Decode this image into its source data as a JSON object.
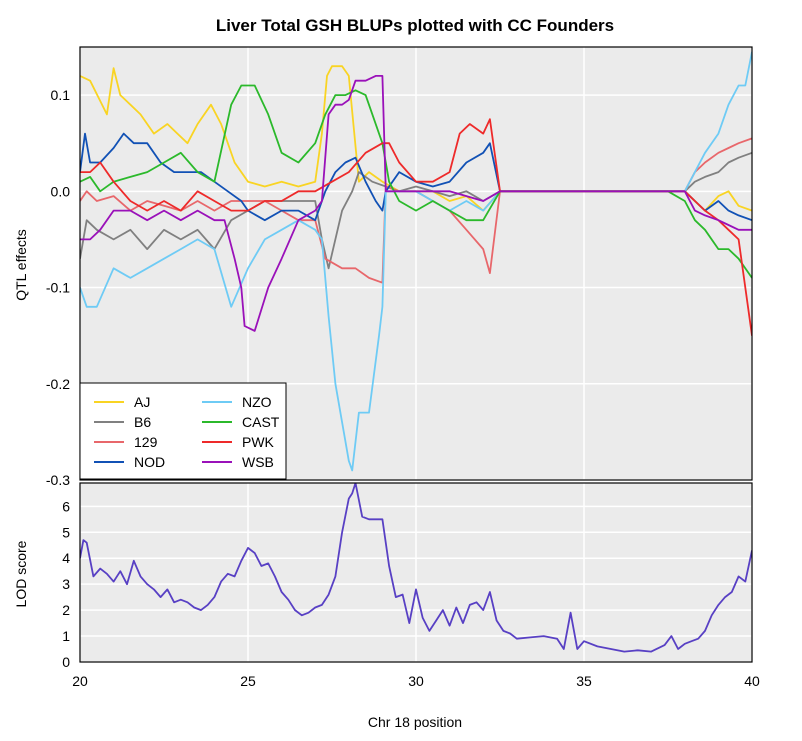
{
  "chart_data": [
    {
      "type": "line",
      "title": "Liver Total GSH BLUPs plotted with CC Founders",
      "ylabel": "QTL effects",
      "xlabel": "",
      "xlim": [
        20,
        40
      ],
      "ylim": [
        -0.3,
        0.15
      ],
      "x_ticks": [
        20,
        25,
        30,
        35,
        40
      ],
      "y_ticks": [
        -0.3,
        -0.2,
        -0.1,
        0.0,
        0.1
      ],
      "y_tick_labels": [
        "-0.3",
        "-0.2",
        "-0.1",
        "0.0",
        "0.1"
      ],
      "grid": true,
      "legend_position": "bottom-left",
      "series": [
        {
          "name": "AJ",
          "color": "#F9D423",
          "x": [
            20,
            20.3,
            20.8,
            21,
            21.2,
            21.5,
            21.8,
            22.2,
            22.6,
            22.9,
            23.2,
            23.5,
            23.9,
            24.2,
            24.6,
            25,
            25.5,
            26,
            26.5,
            27,
            27.2,
            27.35,
            27.5,
            27.8,
            28.0,
            28.3,
            28.6,
            29.0,
            29.5,
            30,
            30.5,
            31,
            31.5,
            32,
            32.5,
            38,
            38.3,
            38.6,
            39,
            39.3,
            39.6,
            40
          ],
          "y": [
            0.12,
            0.115,
            0.08,
            0.128,
            0.1,
            0.09,
            0.08,
            0.06,
            0.07,
            0.06,
            0.05,
            0.07,
            0.09,
            0.07,
            0.03,
            0.01,
            0.005,
            0.01,
            0.005,
            0.01,
            0.06,
            0.12,
            0.13,
            0.13,
            0.12,
            0.01,
            0.02,
            0.01,
            0.0,
            0.0,
            0.0,
            -0.01,
            -0.005,
            -0.02,
            0.0,
            0.0,
            -0.01,
            -0.02,
            -0.005,
            0.0,
            -0.015,
            -0.02
          ]
        },
        {
          "name": "B6",
          "color": "#808080",
          "x": [
            20,
            20.2,
            20.5,
            21,
            21.5,
            22,
            22.5,
            23,
            23.5,
            24,
            24.5,
            25,
            25.5,
            26,
            26.5,
            27,
            27.2,
            27.4,
            27.8,
            28.1,
            28.3,
            28.7,
            29.1,
            29.5,
            30,
            30.5,
            31,
            31.5,
            32,
            32.5,
            38,
            38.3,
            38.6,
            39,
            39.3,
            39.6,
            40
          ],
          "y": [
            -0.07,
            -0.03,
            -0.04,
            -0.05,
            -0.04,
            -0.06,
            -0.04,
            -0.05,
            -0.04,
            -0.06,
            -0.03,
            -0.02,
            -0.01,
            -0.01,
            -0.01,
            -0.01,
            -0.05,
            -0.08,
            -0.02,
            0.0,
            0.02,
            0.01,
            0.005,
            0.0,
            0.005,
            0.0,
            -0.005,
            0.0,
            -0.01,
            0.0,
            0.0,
            0.01,
            0.015,
            0.02,
            0.03,
            0.035,
            0.04
          ]
        },
        {
          "name": "129",
          "color": "#E8676B",
          "x": [
            20,
            20.2,
            20.5,
            21,
            21.5,
            22,
            22.5,
            23,
            23.5,
            24,
            24.5,
            25,
            25.5,
            26,
            26.5,
            27,
            27.3,
            27.8,
            28.2,
            28.6,
            29.0,
            29.1,
            29.5,
            30,
            30.5,
            31,
            31.5,
            32,
            32.2,
            32.5,
            38,
            38.3,
            38.6,
            39,
            39.3,
            39.6,
            40
          ],
          "y": [
            -0.01,
            0.0,
            -0.01,
            -0.005,
            -0.02,
            -0.01,
            -0.015,
            -0.02,
            -0.01,
            -0.02,
            -0.01,
            -0.01,
            -0.01,
            -0.02,
            -0.03,
            -0.03,
            -0.07,
            -0.08,
            -0.08,
            -0.09,
            -0.095,
            0.005,
            0.0,
            0.0,
            -0.01,
            -0.02,
            -0.04,
            -0.06,
            -0.085,
            0.0,
            0.0,
            0.02,
            0.03,
            0.04,
            0.045,
            0.05,
            0.055
          ]
        },
        {
          "name": "NOD",
          "color": "#1151B5",
          "x": [
            20,
            20.15,
            20.3,
            20.6,
            21,
            21.3,
            21.6,
            22,
            22.4,
            22.8,
            23.2,
            23.6,
            24,
            24.4,
            24.8,
            25,
            25.5,
            26,
            26.5,
            27,
            27.3,
            27.6,
            27.9,
            28.2,
            28.5,
            28.8,
            29.0,
            29.1,
            29.5,
            30,
            30.5,
            31,
            31.5,
            32,
            32.2,
            32.5,
            38,
            38.3,
            38.6,
            39,
            39.3,
            39.6,
            40
          ],
          "y": [
            0.02,
            0.06,
            0.03,
            0.03,
            0.045,
            0.06,
            0.05,
            0.05,
            0.03,
            0.02,
            0.02,
            0.02,
            0.01,
            0.0,
            -0.01,
            -0.02,
            -0.03,
            -0.02,
            -0.02,
            -0.03,
            0.0,
            0.02,
            0.03,
            0.035,
            0.01,
            -0.01,
            -0.02,
            0.0,
            0.02,
            0.01,
            0.005,
            0.01,
            0.03,
            0.04,
            0.05,
            0.0,
            0.0,
            -0.01,
            -0.02,
            -0.01,
            -0.02,
            -0.025,
            -0.03
          ]
        },
        {
          "name": "NZO",
          "color": "#6ECBF5",
          "x": [
            20,
            20.2,
            20.5,
            21,
            21.5,
            22,
            22.5,
            23,
            23.5,
            24,
            24.5,
            25,
            25.5,
            26,
            26.5,
            27,
            27.2,
            27.4,
            27.6,
            27.8,
            28.0,
            28.1,
            28.3,
            28.6,
            28.9,
            29.0,
            29.1,
            29.5,
            30,
            30.5,
            31,
            31.5,
            32,
            32.5,
            38,
            38.3,
            38.6,
            39,
            39.3,
            39.6,
            39.8,
            40
          ],
          "y": [
            -0.1,
            -0.12,
            -0.12,
            -0.08,
            -0.09,
            -0.08,
            -0.07,
            -0.06,
            -0.05,
            -0.06,
            -0.12,
            -0.08,
            -0.05,
            -0.04,
            -0.03,
            -0.04,
            -0.05,
            -0.13,
            -0.2,
            -0.24,
            -0.28,
            -0.29,
            -0.23,
            -0.23,
            -0.15,
            -0.12,
            0.0,
            0.0,
            0.0,
            -0.01,
            -0.02,
            -0.01,
            -0.02,
            0.0,
            0.0,
            0.02,
            0.04,
            0.06,
            0.09,
            0.11,
            0.11,
            0.145
          ]
        },
        {
          "name": "CAST",
          "color": "#2BB92B",
          "x": [
            20,
            20.3,
            20.6,
            21,
            21.5,
            22,
            22.5,
            23,
            23.5,
            24,
            24.5,
            24.8,
            25.2,
            25.6,
            26,
            26.5,
            27,
            27.3,
            27.6,
            27.9,
            28.2,
            28.5,
            29.0,
            29.2,
            29.5,
            30,
            30.5,
            31,
            31.5,
            32,
            32.5,
            37.5,
            38,
            38.3,
            38.6,
            39,
            39.3,
            39.6,
            40
          ],
          "y": [
            0.01,
            0.015,
            0.0,
            0.01,
            0.015,
            0.02,
            0.03,
            0.04,
            0.02,
            0.01,
            0.09,
            0.11,
            0.11,
            0.08,
            0.04,
            0.03,
            0.05,
            0.08,
            0.1,
            0.1,
            0.105,
            0.1,
            0.05,
            0.01,
            -0.01,
            -0.02,
            -0.01,
            -0.02,
            -0.03,
            -0.03,
            0.0,
            0.0,
            -0.01,
            -0.03,
            -0.04,
            -0.06,
            -0.06,
            -0.07,
            -0.09
          ]
        },
        {
          "name": "PWK",
          "color": "#EE2A2A",
          "x": [
            20,
            20.3,
            20.6,
            21,
            21.5,
            22,
            22.5,
            23,
            23.5,
            24,
            24.5,
            25,
            25.5,
            26,
            26.5,
            27,
            27.5,
            28,
            28.5,
            29.0,
            29.2,
            29.5,
            30,
            30.5,
            31,
            31.3,
            31.6,
            32,
            32.2,
            32.5,
            38,
            38.3,
            38.6,
            39,
            39.3,
            39.6,
            40
          ],
          "y": [
            0.02,
            0.02,
            0.03,
            0.01,
            -0.01,
            -0.02,
            -0.01,
            -0.02,
            0.0,
            -0.01,
            -0.02,
            -0.02,
            -0.01,
            -0.01,
            0.0,
            0.0,
            0.01,
            0.02,
            0.04,
            0.05,
            0.05,
            0.03,
            0.01,
            0.01,
            0.02,
            0.06,
            0.07,
            0.06,
            0.075,
            0.0,
            0.0,
            -0.01,
            -0.02,
            -0.03,
            -0.04,
            -0.05,
            -0.15
          ]
        },
        {
          "name": "WSB",
          "color": "#9A11B9",
          "x": [
            20,
            20.3,
            20.6,
            21,
            21.5,
            22,
            22.5,
            23,
            23.5,
            24,
            24.3,
            24.6,
            24.8,
            24.9,
            25.2,
            25.6,
            26,
            26.5,
            27,
            27.2,
            27.4,
            27.6,
            27.8,
            28.0,
            28.2,
            28.5,
            28.8,
            29.0,
            29.1,
            29.5,
            30,
            30.5,
            31,
            31.5,
            32,
            32.5,
            38,
            38.3,
            38.6,
            39,
            39.3,
            39.6,
            40
          ],
          "y": [
            -0.05,
            -0.05,
            -0.04,
            -0.02,
            -0.02,
            -0.03,
            -0.02,
            -0.03,
            -0.02,
            -0.03,
            -0.03,
            -0.07,
            -0.1,
            -0.14,
            -0.145,
            -0.1,
            -0.07,
            -0.03,
            -0.02,
            -0.01,
            0.08,
            0.09,
            0.09,
            0.095,
            0.115,
            0.115,
            0.12,
            0.12,
            0.0,
            0.0,
            0.0,
            0.0,
            0.0,
            -0.005,
            -0.01,
            0.0,
            0.0,
            -0.02,
            -0.025,
            -0.03,
            -0.035,
            -0.04,
            -0.04
          ]
        }
      ]
    },
    {
      "type": "line",
      "title": "",
      "xlabel": "Chr 18 position",
      "ylabel": "LOD score",
      "xlim": [
        20,
        40
      ],
      "ylim": [
        0,
        6.9
      ],
      "x_ticks": [
        20,
        25,
        30,
        35,
        40
      ],
      "y_ticks": [
        0,
        1,
        2,
        3,
        4,
        5,
        6
      ],
      "grid": true,
      "series": [
        {
          "name": "",
          "color": "#5840C4",
          "x": [
            20,
            20.1,
            20.2,
            20.4,
            20.6,
            20.8,
            21.0,
            21.2,
            21.4,
            21.6,
            21.8,
            22.0,
            22.2,
            22.4,
            22.6,
            22.8,
            23.0,
            23.2,
            23.4,
            23.6,
            23.8,
            24.0,
            24.2,
            24.4,
            24.6,
            24.8,
            25.0,
            25.2,
            25.4,
            25.6,
            25.8,
            26.0,
            26.2,
            26.4,
            26.6,
            26.8,
            27.0,
            27.2,
            27.4,
            27.6,
            27.8,
            28.0,
            28.1,
            28.2,
            28.4,
            28.6,
            28.8,
            29.0,
            29.2,
            29.4,
            29.6,
            29.8,
            30.0,
            30.2,
            30.4,
            30.6,
            30.8,
            31.0,
            31.2,
            31.4,
            31.6,
            31.8,
            32.0,
            32.2,
            32.4,
            32.6,
            32.8,
            33.0,
            33.4,
            33.8,
            34.2,
            34.4,
            34.6,
            34.8,
            35.0,
            35.4,
            35.8,
            36.2,
            36.6,
            37.0,
            37.4,
            37.6,
            37.8,
            38.0,
            38.2,
            38.4,
            38.6,
            38.8,
            39.0,
            39.2,
            39.4,
            39.6,
            39.8,
            40.0
          ],
          "y": [
            4.0,
            4.7,
            4.6,
            3.3,
            3.6,
            3.4,
            3.1,
            3.5,
            3.0,
            3.9,
            3.3,
            3.0,
            2.8,
            2.5,
            2.8,
            2.3,
            2.4,
            2.3,
            2.1,
            2.0,
            2.2,
            2.5,
            3.1,
            3.4,
            3.3,
            3.9,
            4.4,
            4.2,
            3.7,
            3.8,
            3.3,
            2.7,
            2.4,
            2.0,
            1.8,
            1.9,
            2.1,
            2.2,
            2.6,
            3.3,
            5.0,
            6.3,
            6.5,
            6.9,
            5.6,
            5.5,
            5.5,
            5.5,
            3.7,
            2.5,
            2.6,
            1.5,
            2.8,
            1.7,
            1.2,
            1.6,
            2.0,
            1.4,
            2.1,
            1.5,
            2.2,
            2.3,
            2.0,
            2.7,
            1.6,
            1.2,
            1.1,
            0.9,
            0.95,
            1.0,
            0.9,
            0.5,
            1.9,
            0.5,
            0.8,
            0.6,
            0.5,
            0.4,
            0.45,
            0.4,
            0.65,
            1.0,
            0.5,
            0.7,
            0.8,
            0.9,
            1.2,
            1.8,
            2.2,
            2.5,
            2.7,
            3.3,
            3.1,
            4.3
          ]
        }
      ]
    }
  ]
}
